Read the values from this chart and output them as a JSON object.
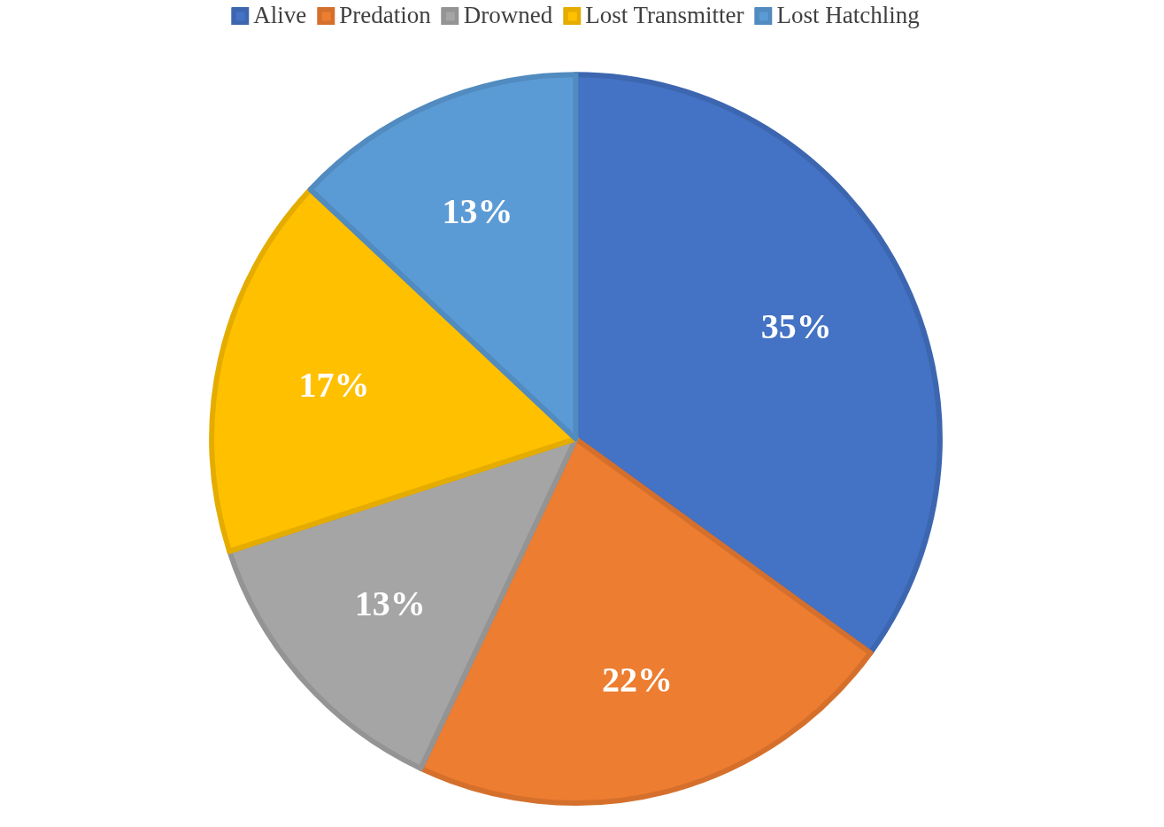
{
  "chart_data": {
    "type": "pie",
    "categories": [
      "Alive",
      "Predation",
      "Drowned",
      "Lost Transmitter",
      "Lost Hatchling"
    ],
    "values": [
      35,
      22,
      13,
      17,
      13
    ],
    "colors": [
      "#4472c4",
      "#ed7d31",
      "#a5a5a5",
      "#ffc000",
      "#5b9bd5"
    ],
    "value_labels": [
      "35%",
      "22%",
      "13%",
      "17%",
      "13%"
    ],
    "legend": "top"
  }
}
